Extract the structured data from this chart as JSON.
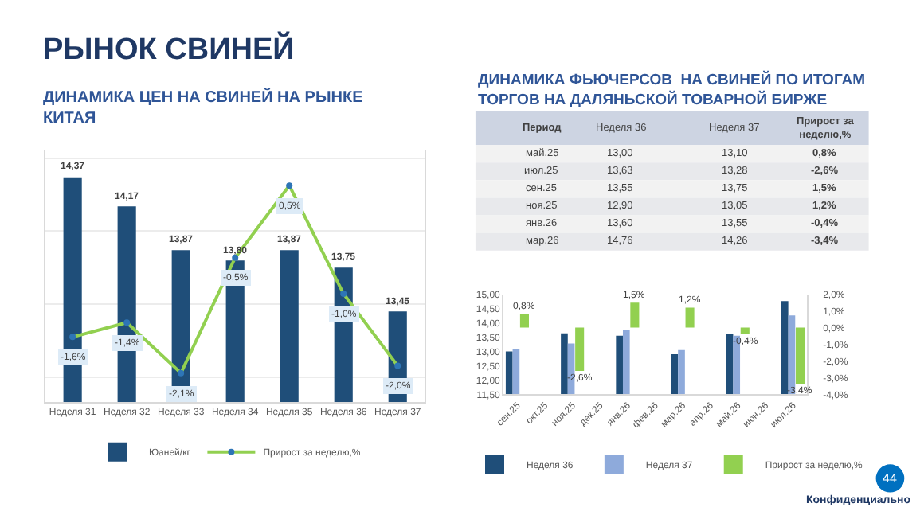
{
  "chart_data": [
    {
      "type": "bar",
      "title": "РЫНОК СВИНЕЙ",
      "subtitle": "ДИНАМИКА ЦЕН НА СВИНЕЙ НА РЫНКЕ\nКИТАЯ",
      "categories": [
        "Неделя 31",
        "Неделя 32",
        "Неделя 33",
        "Неделя 34",
        "Неделя 35",
        "Неделя 36",
        "Неделя 37"
      ],
      "series": [
        {
          "name": "Юаней/кг",
          "type": "bar",
          "color": "#1f4e79",
          "values": [
            14.37,
            14.17,
            13.87,
            13.8,
            13.87,
            13.75,
            13.45
          ],
          "value_labels": [
            "14,37",
            "14,17",
            "13,87",
            "13,80",
            "13,87",
            "13,75",
            "13,45"
          ]
        },
        {
          "name": "Прирост за неделю,%",
          "type": "line",
          "axis": "y2",
          "color": "#92d050",
          "values": [
            -1.6,
            -1.4,
            -2.1,
            -0.5,
            0.5,
            -1.0,
            -2.0
          ],
          "value_labels": [
            "-1,6%",
            "-1,4%",
            "-2,1%",
            "-0,5%",
            "0,5%",
            "-1,0%",
            "-2,0%"
          ]
        }
      ],
      "ylim": [
        12.83,
        14.56
      ],
      "y2lim": [
        -2.5,
        1.0
      ],
      "grid": "y",
      "legend": "bottom",
      "tick_labels": "x",
      "marker": "circle"
    },
    {
      "type": "other",
      "title": "ДИНАМИКА ФЬЮЧЕРСОВ  НА СВИНЕЙ ПО ИТОГАМ\nТОРГОВ НА ДАЛЯНЬСКОЙ ТОВАРНОЙ БИРЖЕ",
      "categories": [
        "Период",
        "Неделя 36",
        "Неделя 37",
        "Прирост за\nнеделю,%"
      ],
      "cell_labels": [
        [
          "май.25",
          "13,00",
          "13,10",
          "0,8%"
        ],
        [
          "июл.25",
          "13,63",
          "13,28",
          "-2,6%"
        ],
        [
          "сен.25",
          "13,55",
          "13,75",
          "1,5%"
        ],
        [
          "ноя.25",
          "12,90",
          "13,05",
          "1,2%"
        ],
        [
          "янв.26",
          "13,60",
          "13,55",
          "-0,4%"
        ],
        [
          "мар.26",
          "14,76",
          "14,26",
          "-3,4%"
        ]
      ]
    },
    {
      "type": "bar",
      "categories": [
        "сен.25",
        "окт.25",
        "ноя.25",
        "дек.25",
        "янв.26",
        "фев.26",
        "мар.26",
        "апр.26",
        "май.26",
        "июн.26",
        "июл.26"
      ],
      "series": [
        {
          "name": "Неделя 36",
          "type": "bar",
          "color": "#1f4e79",
          "values": [
            13.0,
            null,
            13.63,
            null,
            13.55,
            null,
            12.9,
            null,
            13.6,
            null,
            14.76
          ]
        },
        {
          "name": "Неделя 37",
          "type": "bar",
          "color": "#8eaadb",
          "values": [
            13.1,
            null,
            13.28,
            null,
            13.75,
            null,
            13.05,
            null,
            13.55,
            null,
            14.26
          ]
        },
        {
          "name": "Прирост за неделю,%",
          "type": "bar",
          "axis": "y2",
          "color": "#92d050",
          "values": [
            0.8,
            null,
            -2.6,
            null,
            1.5,
            null,
            1.2,
            null,
            -0.4,
            null,
            -3.4
          ],
          "value_labels": [
            "0,8%",
            null,
            "-2,6%",
            null,
            "1,5%",
            null,
            "1,2%",
            null,
            "-0,4%",
            null,
            "-3,4%"
          ]
        }
      ],
      "ylim": [
        11.5,
        15.0
      ],
      "yticks": [
        {
          "value": 11.5,
          "label": "11,50"
        },
        {
          "value": 12.0,
          "label": "12,00"
        },
        {
          "value": 12.5,
          "label": "12,50"
        },
        {
          "value": 13.0,
          "label": "13,00"
        },
        {
          "value": 13.5,
          "label": "13,50"
        },
        {
          "value": 14.0,
          "label": "14,00"
        },
        {
          "value": 14.5,
          "label": "14,50"
        },
        {
          "value": 15.0,
          "label": "15,00"
        }
      ],
      "y2lim": [
        -4.0,
        2.0
      ],
      "y2ticks": [
        {
          "value": -4.0,
          "label": "-4,0%"
        },
        {
          "value": -3.0,
          "label": "-3,0%"
        },
        {
          "value": -2.0,
          "label": "-2,0%"
        },
        {
          "value": -1.0,
          "label": "-1,0%"
        },
        {
          "value": 0.0,
          "label": "0,0%"
        },
        {
          "value": 1.0,
          "label": "1,0%"
        },
        {
          "value": 2.0,
          "label": "2,0%"
        }
      ],
      "legend": "bottom",
      "annotations": [
        "44",
        "Конфиденциально"
      ]
    }
  ]
}
